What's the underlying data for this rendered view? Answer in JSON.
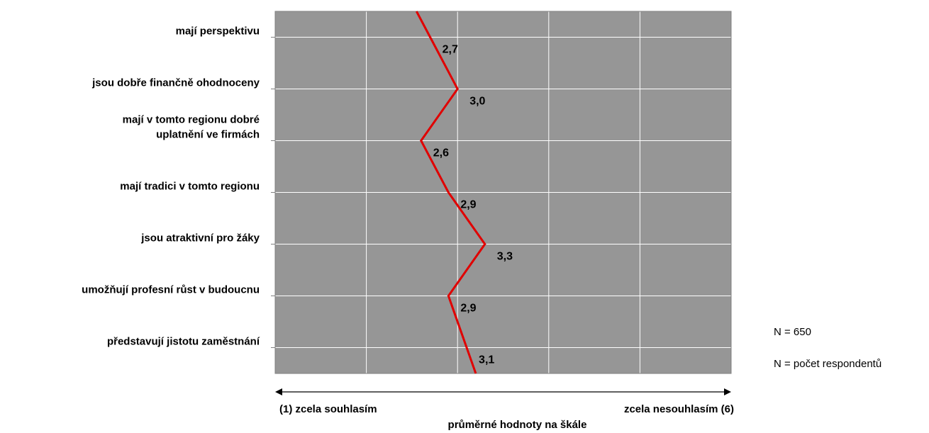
{
  "chart_data": {
    "type": "line",
    "orientation": "horizontal-value-axis",
    "categories": [
      [
        "mají perspektivu"
      ],
      [
        "jsou dobře finančně ohodnoceny"
      ],
      [
        "mají v tomto regionu dobré",
        "uplatnění ve firmách"
      ],
      [
        "mají tradici v tomto regionu"
      ],
      [
        "jsou atraktivní pro žáky"
      ],
      [
        "umožňují profesní růst v budoucnu"
      ],
      [
        "představují jistotu zaměstnání"
      ]
    ],
    "values": [
      2.7,
      3.0,
      2.6,
      2.9,
      3.3,
      2.9,
      3.1
    ],
    "value_labels": [
      "2,7",
      "3,0",
      "2,6",
      "2,9",
      "3,3",
      "2,9",
      "3,1"
    ],
    "xlim": [
      1,
      6
    ],
    "xlabel": "průměrné hodnoty na škále",
    "xlabel_left": "(1) zcela souhlasím",
    "xlabel_right": "zcela nesouhlasím (6)",
    "grid": true,
    "plot_background": "#969696",
    "line_color": "#e00000"
  },
  "notes": {
    "n_value": "N = 650",
    "n_definition": "N = počet respondentů"
  }
}
